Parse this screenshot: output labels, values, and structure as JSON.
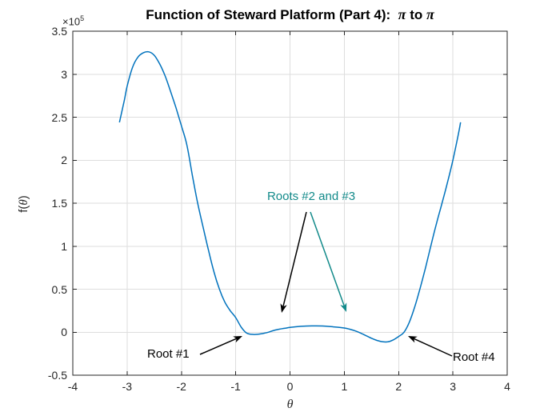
{
  "figure": {
    "title": {
      "prefix": "Function of Steward Platform (Part 4):  ",
      "pi_1": "π",
      "middle": " to ",
      "pi_2": "π"
    },
    "y_offset": {
      "base": "×10",
      "exponent": "5"
    },
    "x_axis": {
      "label": "θ",
      "ticks": [
        "-4",
        "-3",
        "-2",
        "-1",
        "0",
        "1",
        "2",
        "3",
        "4"
      ],
      "range": [
        -4,
        4
      ]
    },
    "y_axis": {
      "label_prefix": "f(",
      "label_theta": "θ",
      "label_suffix": ")",
      "ticks": [
        "-0.5",
        "0",
        "0.5",
        "1",
        "1.5",
        "2",
        "2.5",
        "3",
        "3.5"
      ],
      "range_e5": [
        -0.5,
        3.5
      ]
    },
    "colors": {
      "curve": "#0072BD",
      "grid": "#DEDEDE",
      "axis": "#262626",
      "teal_annotation": "#128A8A",
      "black_annotation": "#000000"
    },
    "annotations": {
      "roots_2_3": {
        "text": "Roots #2 and #3",
        "color": "#128A8A",
        "arrows": [
          {
            "color": "#000000",
            "from": [
              383,
              265
            ],
            "to": [
              352,
              391
            ]
          },
          {
            "color": "#128A8A",
            "from": [
              388,
              265
            ],
            "to": [
              433,
              390
            ]
          }
        ]
      },
      "root_1": {
        "text": "Root #1",
        "color": "#000000",
        "arrow": {
          "color": "#000000",
          "from": [
            250,
            443
          ],
          "to": [
            303,
            420
          ]
        }
      },
      "root_4": {
        "text": "Root #4",
        "color": "#000000",
        "arrow": {
          "color": "#000000",
          "from": [
            565,
            445
          ],
          "to": [
            510,
            420
          ]
        }
      }
    }
  },
  "chart_data": {
    "type": "line",
    "title": "Function of Steward Platform (Part 4):  π to π",
    "xlabel": "θ",
    "ylabel": "f(θ)",
    "xlim": [
      -4,
      4
    ],
    "ylim": [
      -50000,
      350000
    ],
    "y_axis_multiplier_label": "×10^5",
    "grid": true,
    "legend": "none",
    "series": [
      {
        "name": "f(θ)",
        "color": "#0072BD",
        "x": [
          -3.1416,
          -3.05,
          -3.0,
          -2.9,
          -2.8,
          -2.7,
          -2.6,
          -2.5,
          -2.4,
          -2.3,
          -2.2,
          -2.1,
          -2.0,
          -1.9,
          -1.8,
          -1.7,
          -1.6,
          -1.5,
          -1.4,
          -1.3,
          -1.2,
          -1.1,
          -1.0,
          -0.9,
          -0.8,
          -0.7,
          -0.6,
          -0.5,
          -0.4,
          -0.3,
          -0.2,
          -0.1,
          0,
          0.2,
          0.4,
          0.6,
          0.8,
          1.0,
          1.1,
          1.2,
          1.3,
          1.4,
          1.5,
          1.6,
          1.7,
          1.8,
          1.9,
          2.0,
          2.1,
          2.2,
          2.3,
          2.4,
          2.5,
          2.6,
          2.7,
          2.8,
          2.9,
          3.0,
          3.1,
          3.1416
        ],
        "y": [
          244000,
          270000,
          286000,
          308000,
          320000,
          325000,
          326000,
          322000,
          312000,
          298000,
          280000,
          261000,
          240000,
          218000,
          183000,
          150000,
          122000,
          95000,
          70000,
          50000,
          35000,
          25000,
          17000,
          6000,
          -1000,
          -2500,
          -2500,
          -1500,
          0,
          2000,
          3500,
          4500,
          5500,
          6800,
          7300,
          7200,
          6200,
          4900,
          3500,
          1500,
          -1000,
          -4000,
          -7000,
          -9500,
          -11000,
          -11200,
          -9000,
          -5000,
          0,
          12000,
          30000,
          52000,
          76000,
          102000,
          127000,
          150000,
          174000,
          200000,
          230000,
          244000
        ]
      }
    ],
    "annotations": [
      {
        "text": "Roots #2 and #3",
        "color": "#128A8A",
        "text_xy": [
          0.39,
          157000
        ],
        "arrow_tips_xy": [
          [
            -0.16,
            22500
          ],
          [
            1.04,
            23500
          ]
        ]
      },
      {
        "text": "Root #1",
        "color": "#000000",
        "text_xy": [
          -2.16,
          -26000
        ],
        "arrow_tips_xy": [
          [
            -0.88,
            -4400
          ]
        ]
      },
      {
        "text": "Root #4",
        "color": "#000000",
        "text_xy": [
          3.45,
          -28600
        ],
        "arrow_tips_xy": [
          [
            2.17,
            -4400
          ]
        ]
      }
    ]
  }
}
